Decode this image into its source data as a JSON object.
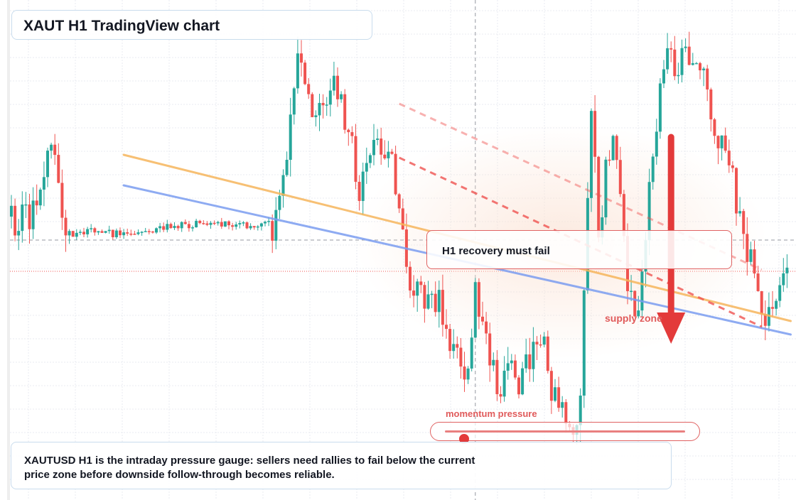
{
  "title": "XAUT H1 TradingView chart",
  "callout": "H1 recovery must fail",
  "zone_label": "supply zone",
  "gauge": {
    "label": "momentum pressure",
    "level": 0.08
  },
  "note": "XAUTUSD H1 is the intraday pressure gauge: sellers need rallies to fail below the current price zone before downside follow-through becomes reliable.",
  "colors": {
    "bull": "#26a69a",
    "bear": "#ef5350",
    "accent": "#e33a3a",
    "ma_fast": "#f6b55c",
    "ma_slow": "#7a9cf0",
    "grid": "#e8ebf0"
  },
  "chart_data": {
    "type": "candlestick",
    "xlabel": "",
    "ylabel": "",
    "ylim": [
      0,
      704
    ],
    "grid": true,
    "current_price": 382,
    "crosshair": {
      "price": 338,
      "index": 128
    },
    "series": [
      {
        "type": "ma",
        "color": "ma_fast",
        "points": [
          [
            31,
            218
          ],
          [
            215,
            452
          ]
        ]
      },
      {
        "type": "ma",
        "color": "ma_slow",
        "points": [
          [
            31,
            261
          ],
          [
            215,
            471
          ]
        ]
      }
    ],
    "trendlines": [
      {
        "from": [
          107,
          222
        ],
        "to": [
          207,
          460
        ],
        "dashed": true,
        "opacity": 0.8
      },
      {
        "from": [
          107,
          146
        ],
        "to": [
          207,
          380
        ],
        "dashed": true,
        "opacity": 0.45
      }
    ],
    "arrow": {
      "index": 182,
      "from": 193,
      "to": 484
    },
    "candles_seed": 202406,
    "candle_count": 215,
    "waypoints": [
      [
        0,
        305
      ],
      [
        5,
        305
      ],
      [
        8,
        240
      ],
      [
        11,
        190
      ],
      [
        14,
        285
      ],
      [
        16,
        330
      ],
      [
        20,
        325
      ],
      [
        30,
        330
      ],
      [
        45,
        318
      ],
      [
        55,
        314
      ],
      [
        65,
        318
      ],
      [
        73,
        312
      ],
      [
        75,
        255
      ],
      [
        77,
        150
      ],
      [
        80,
        75
      ],
      [
        83,
        150
      ],
      [
        86,
        155
      ],
      [
        90,
        120
      ],
      [
        93,
        175
      ],
      [
        96,
        265
      ],
      [
        100,
        220
      ],
      [
        103,
        205
      ],
      [
        106,
        255
      ],
      [
        108,
        345
      ],
      [
        110,
        400
      ],
      [
        114,
        425
      ],
      [
        118,
        420
      ],
      [
        120,
        470
      ],
      [
        125,
        545
      ],
      [
        128,
        420
      ],
      [
        130,
        480
      ],
      [
        133,
        530
      ],
      [
        135,
        545
      ],
      [
        138,
        520
      ],
      [
        140,
        550
      ],
      [
        143,
        500
      ],
      [
        146,
        465
      ],
      [
        149,
        540
      ],
      [
        153,
        580
      ],
      [
        155,
        610
      ],
      [
        157,
        570
      ],
      [
        158,
        430
      ],
      [
        160,
        130
      ],
      [
        162,
        330
      ],
      [
        165,
        200
      ],
      [
        168,
        250
      ],
      [
        170,
        410
      ],
      [
        172,
        460
      ],
      [
        174,
        360
      ],
      [
        176,
        270
      ],
      [
        180,
        85
      ],
      [
        184,
        100
      ],
      [
        188,
        75
      ],
      [
        192,
        115
      ],
      [
        195,
        200
      ],
      [
        198,
        230
      ],
      [
        201,
        305
      ],
      [
        203,
        350
      ],
      [
        206,
        385
      ],
      [
        208,
        470
      ],
      [
        210,
        440
      ],
      [
        213,
        385
      ],
      [
        215,
        360
      ]
    ]
  }
}
